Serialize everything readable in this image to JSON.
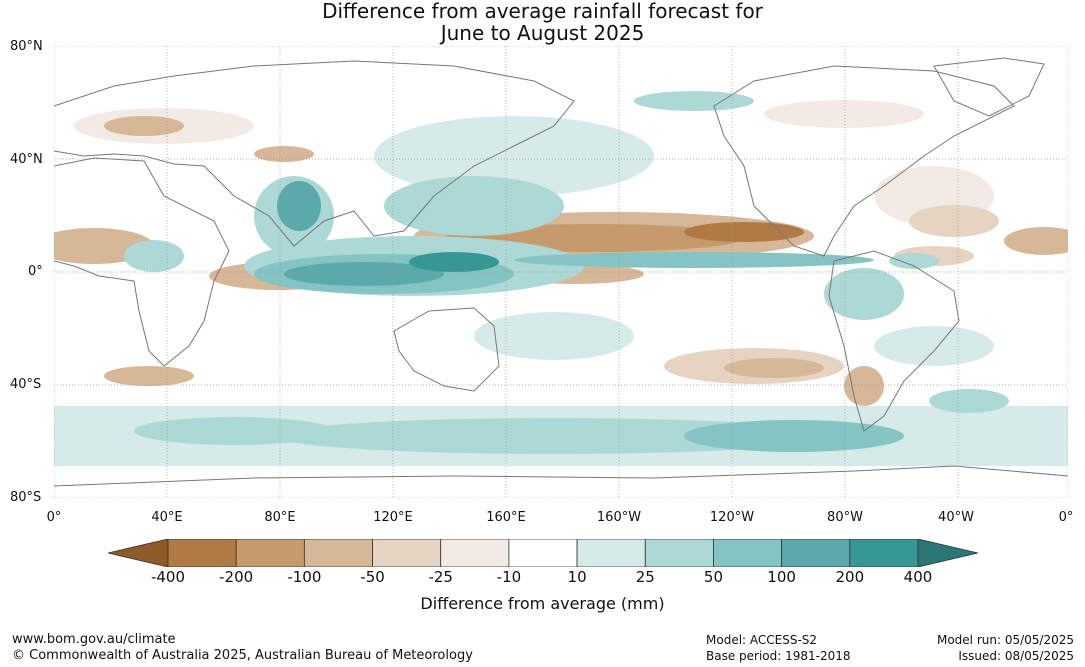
{
  "title": {
    "line1": "Difference from average rainfall forecast for",
    "line2": "June to August 2025"
  },
  "lat_labels": [
    "80°N",
    "40°N",
    "0°",
    "40°S",
    "80°S"
  ],
  "lon_labels": [
    "0°",
    "40°E",
    "80°E",
    "120°E",
    "160°E",
    "160°W",
    "120°W",
    "80°W",
    "40°W",
    "0°"
  ],
  "colorbar": {
    "ticks": [
      "-400",
      "-200",
      "-100",
      "-50",
      "-25",
      "-10",
      "10",
      "25",
      "50",
      "100",
      "200",
      "400"
    ],
    "colors": [
      "#8f5a2a",
      "#b07a45",
      "#c59a6c",
      "#d6b797",
      "#e6d4c3",
      "#f2ebe5",
      "#ffffff",
      "#d6ebe9",
      "#acd8d6",
      "#84c4c3",
      "#5ba9aa",
      "#369795",
      "#2a7776"
    ],
    "label": "Difference from average (mm)"
  },
  "footer": {
    "website": "www.bom.gov.au/climate",
    "copyright": "© Commonwealth of Australia 2025, Australian Bureau of Meteorology",
    "model": "Model: ACCESS-S2",
    "base_period": "Base period: 1981-2018",
    "model_run": "Model run: 05/05/2025",
    "issued": "Issued: 08/05/2025"
  }
}
